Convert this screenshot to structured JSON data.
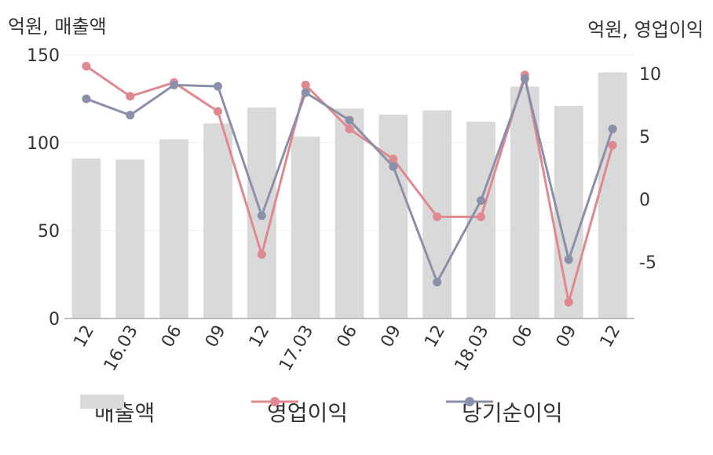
{
  "unit_left": "억원, 매출액",
  "unit_right": "억원, 영업이익",
  "chart_data": {
    "type": "bar",
    "categories": [
      "12",
      "16.03",
      "06",
      "09",
      "12",
      "17.03",
      "06",
      "09",
      "12",
      "18.03",
      "06",
      "09",
      "12"
    ],
    "series": [
      {
        "name": "매출액",
        "type": "bar",
        "axis": "left",
        "color": "#d9d9d9",
        "values": [
          91,
          90.5,
          102,
          111,
          120,
          103.5,
          119.5,
          116,
          118.5,
          112,
          132,
          121,
          140
        ]
      },
      {
        "name": "영업이익",
        "type": "line",
        "axis": "right",
        "color": "#e0888f",
        "values": [
          10.6,
          8.2,
          9.3,
          7.0,
          -4.4,
          9.1,
          5.6,
          3.2,
          -1.4,
          -1.4,
          9.9,
          -8.2,
          4.3
        ]
      },
      {
        "name": "당기순이익",
        "type": "line",
        "axis": "right",
        "color": "#8a90aa",
        "values": [
          8.0,
          6.7,
          9.1,
          9.0,
          -1.3,
          8.5,
          6.3,
          2.6,
          -6.6,
          -0.1,
          9.6,
          -4.8,
          5.6
        ]
      }
    ],
    "y_left": {
      "min": 0,
      "max": 150,
      "ticks": [
        0,
        50,
        100,
        150
      ]
    },
    "y_right": {
      "min": -9.5,
      "max": 11.5,
      "ticks": [
        -5,
        0,
        5,
        10
      ]
    },
    "grid": true,
    "legend": "bottom"
  }
}
